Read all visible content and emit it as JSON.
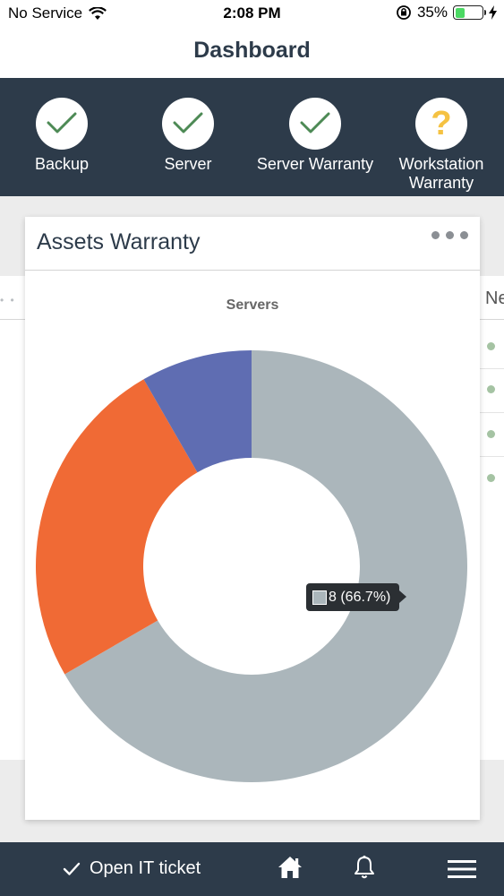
{
  "status_bar": {
    "carrier": "No Service",
    "time": "2:08 PM",
    "battery_percent": "35%",
    "battery_level": 0.35,
    "battery_color": "#4cd964"
  },
  "nav": {
    "title": "Dashboard"
  },
  "status_items": [
    {
      "label": "Backup",
      "icon": "check-icon",
      "state": "ok"
    },
    {
      "label": "Server",
      "icon": "check-icon",
      "state": "ok"
    },
    {
      "label": "Server Warranty",
      "icon": "check-icon",
      "state": "ok"
    },
    {
      "label": "Workstation Warranty",
      "icon": "question-icon",
      "state": "unknown",
      "glyph": "?"
    }
  ],
  "card": {
    "title": "Assets Warranty",
    "chart_title": "Servers",
    "tooltip": "8 (66.7%)"
  },
  "side_card": {
    "header_fragment": "Ne"
  },
  "chart_data": {
    "type": "pie",
    "title": "Servers",
    "donut": true,
    "slices": [
      {
        "value": 8,
        "percent": 66.7,
        "color": "#abb6bb"
      },
      {
        "value": 3,
        "percent": 25.0,
        "color": "#f06a35"
      },
      {
        "value": 1,
        "percent": 8.3,
        "color": "#5f6db2"
      }
    ],
    "tooltip_slice_index": 0
  },
  "bottom_bar": {
    "ticket_label": "Open IT ticket",
    "home_icon": "home-icon",
    "bell_icon": "bell-icon",
    "menu_icon": "hamburger-menu-icon"
  },
  "colors": {
    "dark": "#2d3b4a",
    "ok_check": "#4d8a55",
    "question": "#f5c242"
  }
}
